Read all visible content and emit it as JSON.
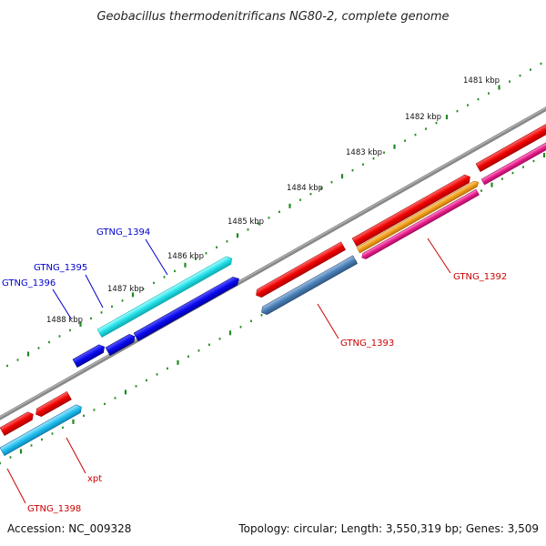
{
  "title": "Geobacillus thermodenitrificans NG80-2, complete genome",
  "footer": {
    "accession": "Accession: NC_009328",
    "summary": "Topology: circular; Length: 3,550,319 bp; Genes: 3,509"
  },
  "ticks": [
    "1481 kbp",
    "1482 kbp",
    "1483 kbp",
    "1484 kbp",
    "1485 kbp",
    "1486 kbp",
    "1487 kbp",
    "1488 kbp"
  ],
  "gene_labels": [
    "GTNG_1392",
    "GTNG_1393",
    "GTNG_1394",
    "GTNG_1395",
    "GTNG_1396",
    "GTNG_1398",
    "xpt"
  ],
  "colors": {
    "backbone": "#777777",
    "dots": "#1f8a1f",
    "forward_label": "#0000cc",
    "reverse_label": "#cc0000",
    "red_gene": "#ee0000",
    "cyan_gene": "#22e0e8",
    "blue_gene": "#0a0aee",
    "steel_gene": "#4a7fb5",
    "orange_gene": "#f0a020",
    "pink_gene": "#e81e8c",
    "sky_gene": "#22c0f0"
  }
}
